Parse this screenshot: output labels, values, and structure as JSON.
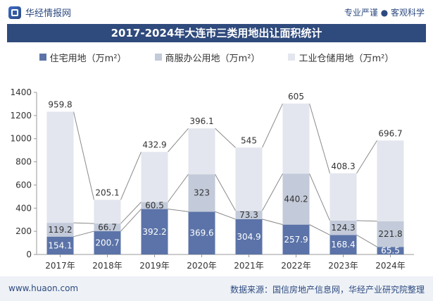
{
  "header": {
    "brand_name": "华经情报网",
    "tagline": "专业严谨 ● 客观科学"
  },
  "chart_data": {
    "type": "bar",
    "stacked": true,
    "title": "2017-2024年大连市三类用地出让面积统计",
    "categories": [
      "2017年",
      "2018年",
      "2019年",
      "2020年",
      "2021年",
      "2022年",
      "2023年",
      "2024年"
    ],
    "series": [
      {
        "name": "住宅用地（万m²）",
        "color": "#5b73a8",
        "values": [
          154.1,
          200.7,
          392.2,
          369.6,
          304.9,
          257.9,
          168.4,
          65.5
        ]
      },
      {
        "name": "商服办公用地（万m²）",
        "color": "#c3cad9",
        "values": [
          119.2,
          66.7,
          60.5,
          323.0,
          73.3,
          440.2,
          124.3,
          221.8
        ]
      },
      {
        "name": "工业仓储用地（万m²）",
        "color": "#e3e6ee",
        "values": [
          959.8,
          205.1,
          432.9,
          396.1,
          545.0,
          605.0,
          408.3,
          696.7
        ]
      }
    ],
    "y_ticks": [
      0,
      200,
      400,
      600,
      800,
      1000,
      1200,
      1400
    ],
    "ylim": [
      0,
      1400
    ],
    "grid": false,
    "legend_position": "top"
  },
  "footer": {
    "website": "www.huaon.com",
    "source": "数据来源：国信房地产信息网，华经产业研究院整理"
  }
}
